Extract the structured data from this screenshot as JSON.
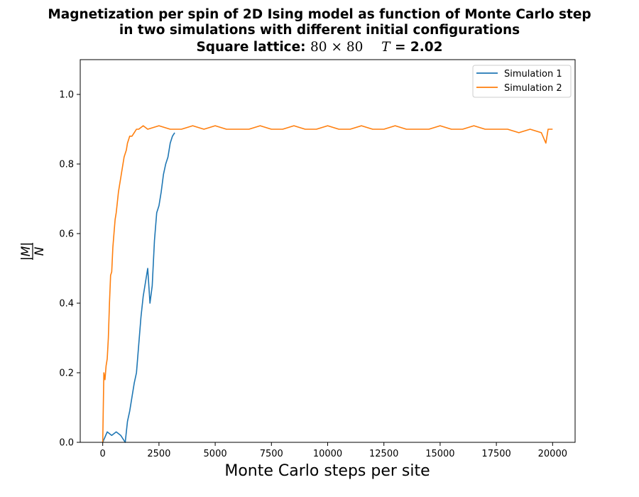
{
  "chart_data": {
    "type": "line",
    "title": {
      "line1": "Magnetization per spin of 2D Ising model as function of Monte Carlo step",
      "line2": "in two simulations with different initial configurations",
      "line3_label": "Square lattice:",
      "line3_size": "80 × 80",
      "line3_T_symbol": "T",
      "line3_T_value": "= 2.02"
    },
    "xlabel": "Monte Carlo steps per site",
    "ylabel": {
      "numerator": "|M|",
      "denominator": "N"
    },
    "xlim": [
      -1000,
      21000
    ],
    "ylim": [
      0.0,
      1.1
    ],
    "xticks": [
      0,
      2500,
      5000,
      7500,
      10000,
      12500,
      15000,
      17500,
      20000
    ],
    "yticks": [
      0.0,
      0.2,
      0.4,
      0.6,
      0.8,
      1.0
    ],
    "xtick_labels": [
      "0",
      "2500",
      "5000",
      "7500",
      "10000",
      "12500",
      "15000",
      "17500",
      "20000"
    ],
    "ytick_labels": [
      "0.0",
      "0.2",
      "0.4",
      "0.6",
      "0.8",
      "1.0"
    ],
    "grid": false,
    "legend_position": "top-right",
    "series": [
      {
        "name": "Simulation 1",
        "color": "#1f77b4",
        "x": [
          0,
          200,
          400,
          600,
          800,
          1000,
          1100,
          1200,
          1300,
          1400,
          1500,
          1600,
          1700,
          1800,
          1900,
          2000,
          2100,
          2200,
          2300,
          2400,
          2500,
          2600,
          2700,
          2800,
          2900,
          3000,
          3100,
          3200
        ],
        "y": [
          0.0,
          0.03,
          0.02,
          0.03,
          0.02,
          0.0,
          0.06,
          0.09,
          0.13,
          0.17,
          0.2,
          0.28,
          0.36,
          0.42,
          0.46,
          0.5,
          0.4,
          0.45,
          0.58,
          0.66,
          0.68,
          0.72,
          0.77,
          0.8,
          0.82,
          0.86,
          0.88,
          0.89
        ]
      },
      {
        "name": "Simulation 2",
        "color": "#ff7f0e",
        "x": [
          0,
          50,
          100,
          150,
          200,
          250,
          300,
          350,
          400,
          450,
          500,
          550,
          600,
          650,
          700,
          750,
          800,
          850,
          900,
          950,
          1000,
          1050,
          1100,
          1150,
          1200,
          1300,
          1400,
          1500,
          1600,
          1800,
          2000,
          2500,
          3000,
          3500,
          4000,
          4500,
          5000,
          5500,
          6000,
          6500,
          7000,
          7500,
          8000,
          8500,
          9000,
          9500,
          10000,
          10500,
          11000,
          11500,
          12000,
          12500,
          13000,
          13500,
          14000,
          14500,
          15000,
          15500,
          16000,
          16500,
          17000,
          17500,
          18000,
          18500,
          19000,
          19500,
          19700,
          19800,
          20000
        ],
        "y": [
          0.0,
          0.2,
          0.18,
          0.22,
          0.24,
          0.3,
          0.4,
          0.48,
          0.49,
          0.56,
          0.6,
          0.64,
          0.66,
          0.69,
          0.72,
          0.74,
          0.76,
          0.78,
          0.8,
          0.82,
          0.83,
          0.84,
          0.86,
          0.87,
          0.88,
          0.88,
          0.89,
          0.9,
          0.9,
          0.91,
          0.9,
          0.91,
          0.9,
          0.9,
          0.91,
          0.9,
          0.91,
          0.9,
          0.9,
          0.9,
          0.91,
          0.9,
          0.9,
          0.91,
          0.9,
          0.9,
          0.91,
          0.9,
          0.9,
          0.91,
          0.9,
          0.9,
          0.91,
          0.9,
          0.9,
          0.9,
          0.91,
          0.9,
          0.9,
          0.91,
          0.9,
          0.9,
          0.9,
          0.89,
          0.9,
          0.89,
          0.86,
          0.9,
          0.9
        ]
      }
    ]
  }
}
